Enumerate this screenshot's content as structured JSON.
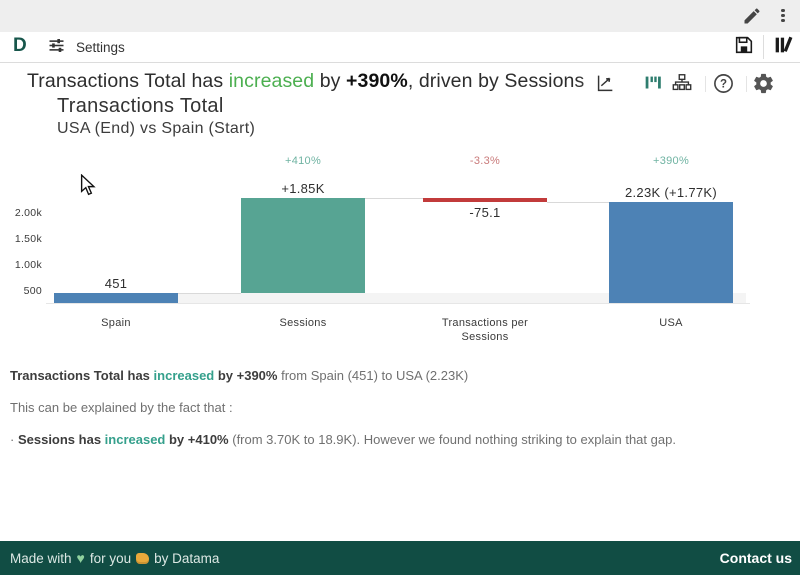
{
  "topbar": {
    "icons": [
      "edit-pencil-icon",
      "kebab-menu-icon"
    ]
  },
  "toolbar": {
    "logo": "D",
    "settings_label": "Settings",
    "icons": [
      "tune-sliders-icon",
      "save-floppy-icon",
      "library-edit-icon"
    ]
  },
  "headline": {
    "prefix": "Transactions Total has ",
    "verb": "increased",
    "mid": " by ",
    "pct": "+390%",
    "suffix": ", driven by Sessions",
    "icons": [
      "export-trend-icon",
      "bar-chart-icon",
      "sitemap-icon",
      "help-icon",
      "gear-icon"
    ]
  },
  "chart": {
    "title": "Transactions Total",
    "subtitle": "USA (End) vs Spain (Start)"
  },
  "chart_data": {
    "type": "bar",
    "subtype": "waterfall",
    "title": "Transactions Total",
    "subtitle": "USA (End) vs Spain (Start)",
    "categories": [
      "Spain",
      "Sessions",
      "Transactions per Sessions",
      "USA"
    ],
    "items": [
      {
        "category": "Spain",
        "role": "start",
        "start": 0,
        "end": 451,
        "value_label": "451",
        "pct_label": ""
      },
      {
        "category": "Sessions",
        "role": "increase",
        "start": 451,
        "end": 2301,
        "value_label": "+1.85K",
        "pct_label": "+410%"
      },
      {
        "category": "Transactions per Sessions",
        "role": "decrease",
        "start": 2301,
        "end": 2226,
        "value_label": "-75.1",
        "pct_label": "-3.3%"
      },
      {
        "category": "USA",
        "role": "end",
        "start": 0,
        "end": 2226,
        "value_label": "2.23K (+1.77K)",
        "pct_label": "+390%"
      }
    ],
    "y_ticks": [
      {
        "value": 500,
        "label": "500"
      },
      {
        "value": 1000,
        "label": "1.00k"
      },
      {
        "value": 1500,
        "label": "1.50k"
      },
      {
        "value": 2000,
        "label": "2.00k"
      }
    ],
    "ylim_visible": [
      265,
      3000
    ],
    "grid": false,
    "legend": "none",
    "colors": {
      "start_end_bar": "#4d82b5",
      "increase_bar": "#57a493",
      "decrease_bar": "#c23b3b",
      "pct_up": "#6fb3a2",
      "pct_down": "#c97a7a",
      "value_text": "#2f2f2f"
    }
  },
  "summary": {
    "line1": {
      "b1": "Transactions Total has ",
      "verb": "increased",
      "b2": " by +390%",
      "rest": " from Spain (451) to USA (2.23K)"
    },
    "line2": "This can be explained by the fact that :",
    "line3": {
      "bullet": "· ",
      "b1": "Sessions has ",
      "verb": "increased",
      "b2": " by +410%",
      "rest": " (from 3.70K to 18.9K). However we found nothing striking to explain that gap."
    }
  },
  "footer": {
    "made_with": "Made with",
    "for_you": "for you",
    "by": "by Datama",
    "contact": "Contact us",
    "bg_color": "#114d44"
  }
}
